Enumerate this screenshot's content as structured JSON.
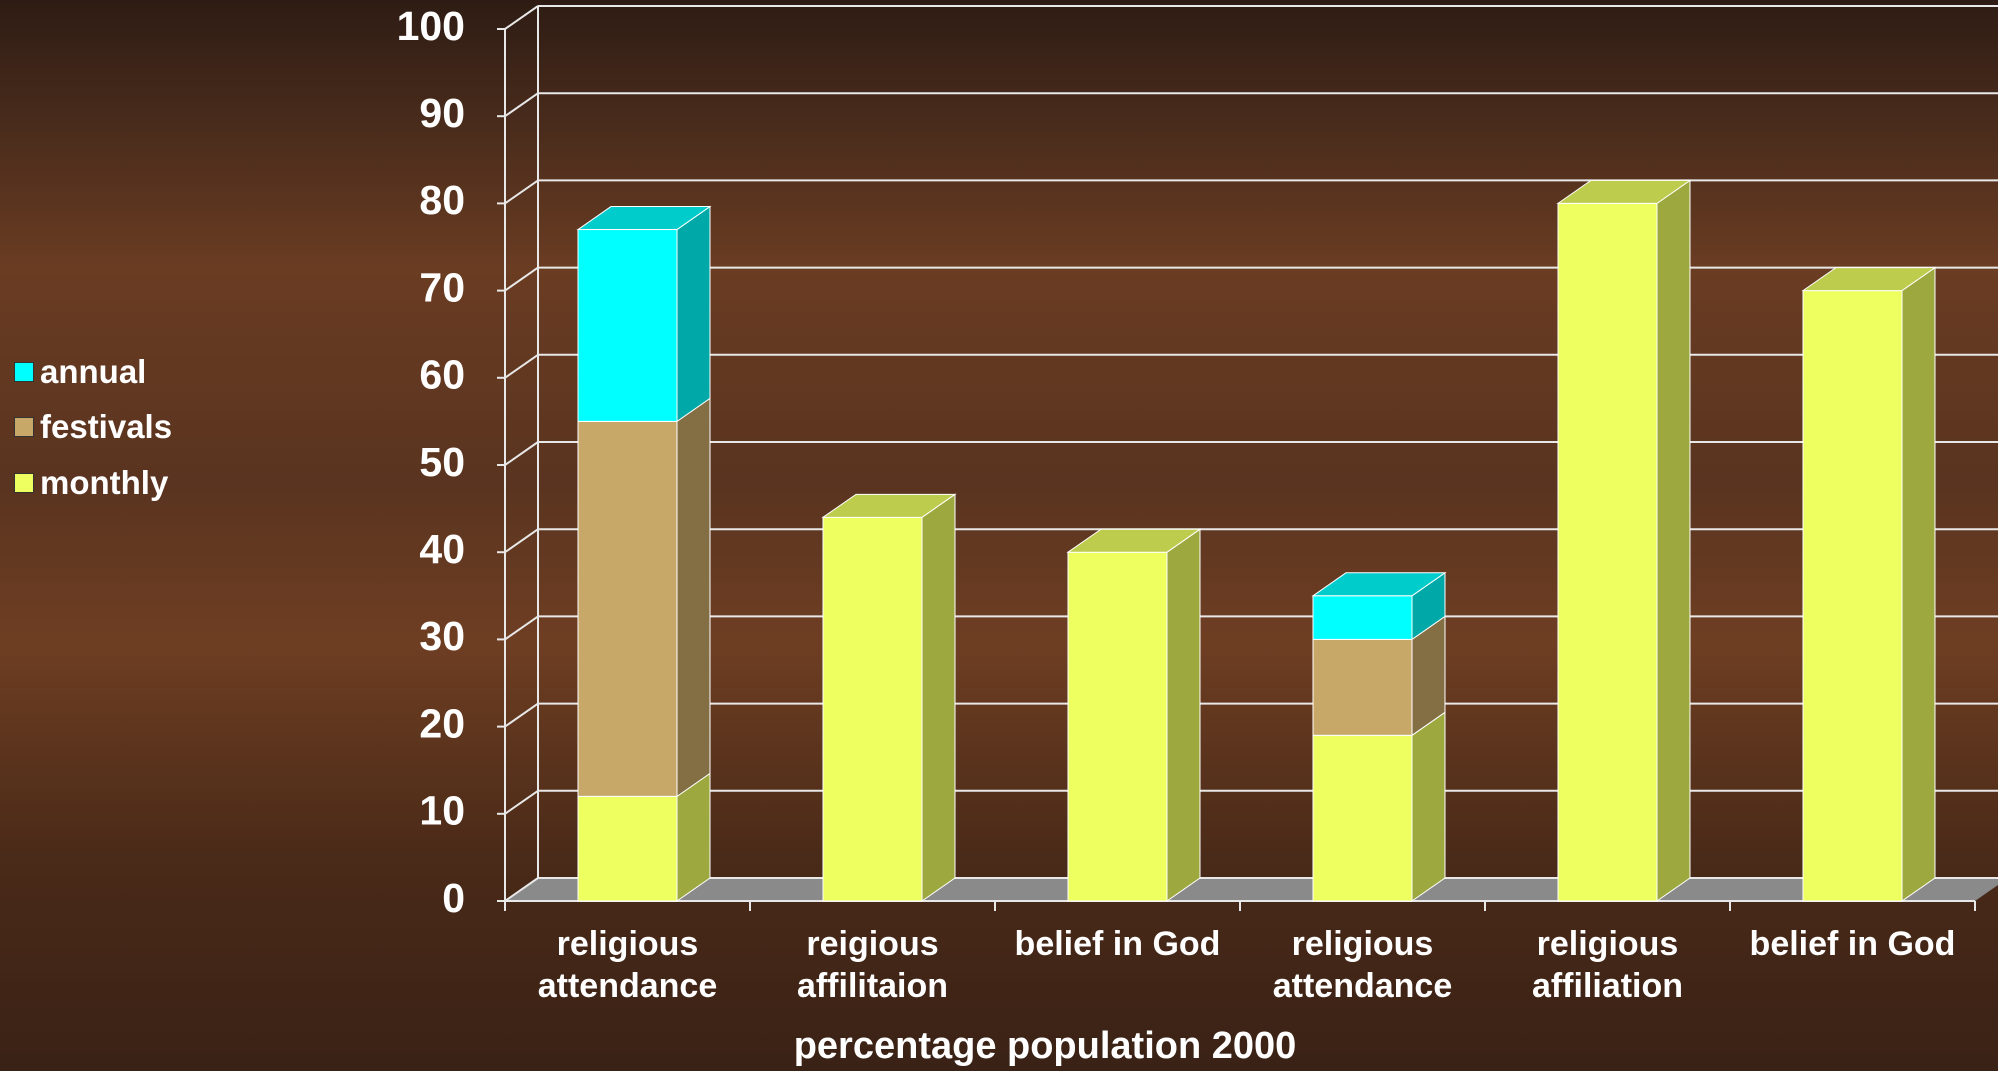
{
  "chart_data": {
    "type": "bar3d_stacked",
    "x_label": "percentage population 2000",
    "categories": [
      "religious\nattendance",
      "reigious\naffilitaion",
      "belief in God",
      "religious\nattendance",
      "religious\naffiliation",
      "belief in God"
    ],
    "series": [
      {
        "name": "monthly",
        "color": "#eeff60",
        "values": [
          12,
          44,
          40,
          19,
          80,
          70
        ]
      },
      {
        "name": "festivals",
        "color": "#c8a868",
        "values": [
          43,
          null,
          null,
          11,
          null,
          null
        ]
      },
      {
        "name": "annual",
        "color": "#00ffff",
        "values": [
          22,
          null,
          null,
          5,
          null,
          null
        ]
      }
    ],
    "ylim": [
      0,
      100
    ],
    "yticks": [
      0,
      10,
      20,
      30,
      40,
      50,
      60,
      70,
      80,
      90,
      100
    ],
    "grid": true,
    "legend": "left"
  }
}
